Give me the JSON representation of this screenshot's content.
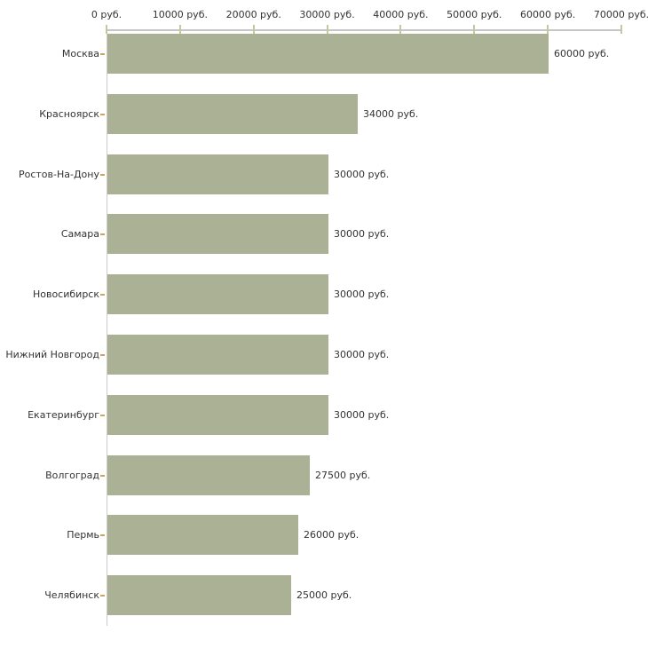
{
  "chart_data": {
    "type": "bar",
    "orientation": "horizontal",
    "title": "",
    "xlabel": "",
    "ylabel": "",
    "categories": [
      "Москва",
      "Красноярск",
      "Ростов-На-Дону",
      "Самара",
      "Новосибирск",
      "Нижний Новгород",
      "Екатеринбург",
      "Волгоград",
      "Пермь",
      "Челябинск"
    ],
    "values": [
      60000,
      34000,
      30000,
      30000,
      30000,
      30000,
      30000,
      27500,
      26000,
      25000
    ],
    "value_labels": [
      "60000 руб.",
      "34000 руб.",
      "30000 руб.",
      "30000 руб.",
      "30000 руб.",
      "30000 руб.",
      "30000 руб.",
      "27500 руб.",
      "26000 руб.",
      "25000 руб."
    ],
    "x_tick_values": [
      0,
      10000,
      20000,
      30000,
      40000,
      50000,
      60000,
      70000
    ],
    "x_tick_labels": [
      "0 руб.",
      "10000 руб.",
      "20000 руб.",
      "30000 руб.",
      "40000 руб.",
      "50000 руб.",
      "60000 руб.",
      "70000 руб."
    ],
    "xlim": [
      0,
      70000
    ],
    "grid": "off",
    "legend": "none",
    "colors": {
      "bar": "#aab194",
      "axis_line": "#c6c6c6",
      "x_tick": "#c5c89e",
      "category_tick": "#c9a662",
      "text": "#333333",
      "background": "#ffffff"
    }
  }
}
